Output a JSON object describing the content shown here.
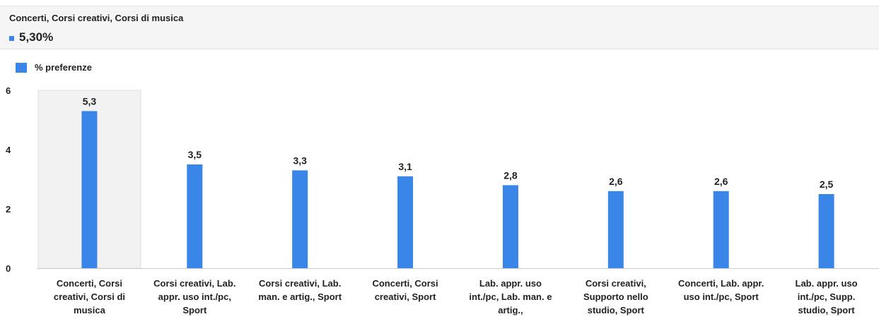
{
  "tooltip": {
    "title": "Concerti, Corsi creativi, Corsi di musica",
    "value": "5,30%"
  },
  "colors": {
    "bar": "#3a86e8",
    "highlight": "#f2f2f2",
    "axis": "#cccccc"
  },
  "chart_data": {
    "type": "bar",
    "title": "",
    "xlabel": "",
    "ylabel": "",
    "legend": "top-left",
    "grid": false,
    "ylim": [
      0,
      6
    ],
    "yticks": [
      "0",
      "2",
      "4",
      "6"
    ],
    "categories": [
      "Concerti, Corsi creativi, Corsi di musica",
      "Corsi creativi, Lab. appr. uso int./pc, Sport",
      "Corsi creativi, Lab. man. e artig., Sport",
      "Concerti, Corsi creativi, Sport",
      "Lab. appr. uso int./pc, Lab. man. e artig.,",
      "Corsi creativi, Supporto nello studio, Sport",
      "Concerti, Lab. appr. uso int./pc, Sport",
      "Lab. appr. uso int./pc, Supp. studio, Sport"
    ],
    "series": [
      {
        "name": "% preferenze",
        "values": [
          5.3,
          3.5,
          3.3,
          3.1,
          2.8,
          2.6,
          2.6,
          2.5
        ],
        "labels": [
          "5,3",
          "3,5",
          "3,3",
          "3,1",
          "2,8",
          "2,6",
          "2,6",
          "2,5"
        ]
      }
    ],
    "highlighted_category": 0
  }
}
